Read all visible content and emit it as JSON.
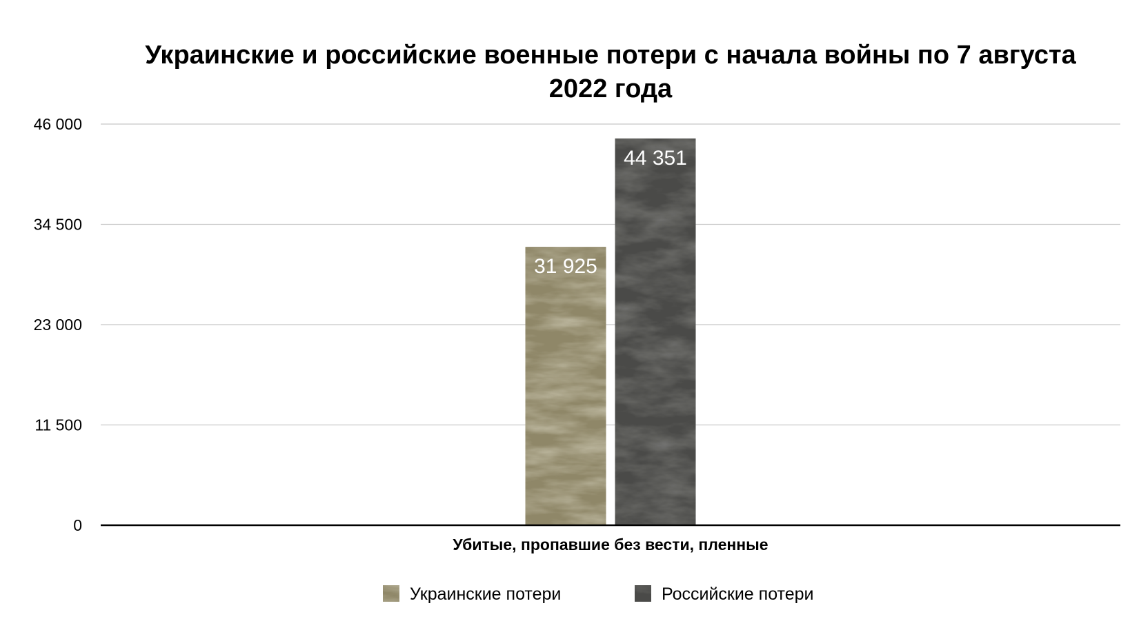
{
  "chart_data": {
    "type": "bar",
    "title_line1": "Украинские и российские военные потери с начала войны по 7 августа",
    "title_line2": "2022 года",
    "categories": [
      "Убитые, пропавшие без вести, пленные"
    ],
    "series": [
      {
        "name": "Украинские потери",
        "values": [
          31925
        ],
        "value_label": "31 925",
        "color": "#8f8768"
      },
      {
        "name": "Российские потери",
        "values": [
          44351
        ],
        "value_label": "44 351",
        "color": "#4a4a48"
      }
    ],
    "ylim": [
      0,
      46000
    ],
    "yticks": [
      {
        "value": 0,
        "label": "0"
      },
      {
        "value": 11500,
        "label": "11 500"
      },
      {
        "value": 23000,
        "label": "23 000"
      },
      {
        "value": 34500,
        "label": "34 500"
      },
      {
        "value": 46000,
        "label": "46 000"
      }
    ],
    "grid": true,
    "legend_position": "bottom-center"
  }
}
